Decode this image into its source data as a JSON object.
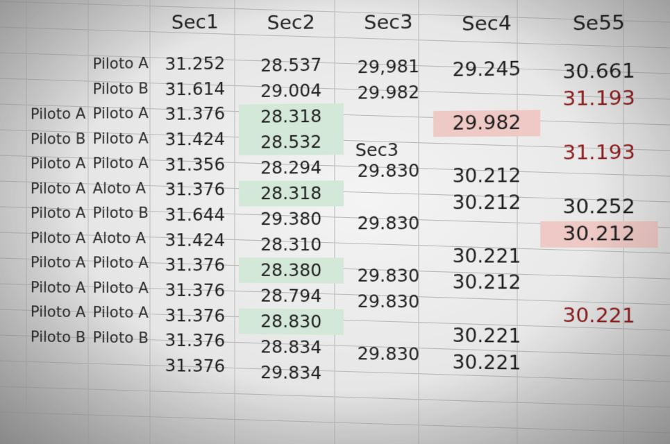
{
  "sheet": {
    "headers": [
      "Sec1",
      "Sec2",
      "Sec3",
      "Sec4",
      "Se55"
    ],
    "stray_label": "Sec3",
    "rows": [
      {
        "a": "",
        "b": "Piloto A",
        "sec1": "31.252",
        "sec2": "28.537",
        "sec3": "29,981",
        "sec4": "29.245",
        "sec5": "30.661"
      },
      {
        "a": "",
        "b": "Piloto B",
        "sec1": "31.614",
        "sec2": "29.004",
        "sec3": "29.982",
        "sec4": "",
        "sec5": "31.193"
      },
      {
        "a": "Piloto A",
        "b": "Piloto A",
        "sec1": "31.376",
        "sec2": "28.318",
        "sec3": "",
        "sec4": "29.982",
        "sec5": ""
      },
      {
        "a": "Piloto B",
        "b": "Piloto A",
        "sec1": "31.424",
        "sec2": "28.532",
        "sec3": "",
        "sec4": "",
        "sec5": "31.193"
      },
      {
        "a": "Piloto A",
        "b": "Piloto A",
        "sec1": "31.356",
        "sec2": "28.294",
        "sec3": "29.830",
        "sec4": "30.212",
        "sec5": ""
      },
      {
        "a": "Piloto A",
        "b": "Aloto A",
        "sec1": "31.376",
        "sec2": "28.318",
        "sec3": "",
        "sec4": "30.212",
        "sec5": "30.252"
      },
      {
        "a": "Piloto A",
        "b": "Piloto B",
        "sec1": "31.644",
        "sec2": "29.380",
        "sec3": "29.830",
        "sec4": "",
        "sec5": "30.212"
      },
      {
        "a": "Piloto A",
        "b": "Aloto A",
        "sec1": "31.424",
        "sec2": "28.310",
        "sec3": "",
        "sec4": "30.221",
        "sec5": ""
      },
      {
        "a": "Piloto A",
        "b": "Piloto A",
        "sec1": "31.376",
        "sec2": "28.380",
        "sec3": "29.830",
        "sec4": "30.212",
        "sec5": ""
      },
      {
        "a": "Piloto A",
        "b": "Piloto A",
        "sec1": "31.376",
        "sec2": "28.794",
        "sec3": "29.830",
        "sec4": "",
        "sec5": "30.221"
      },
      {
        "a": "Piloto A",
        "b": "Piloto A",
        "sec1": "31.376",
        "sec2": "28.830",
        "sec3": "",
        "sec4": "30.221",
        "sec5": ""
      },
      {
        "a": "Piloto B",
        "b": "Piloto B",
        "sec1": "31.376",
        "sec2": "28.834",
        "sec3": "29.830",
        "sec4": "30.221",
        "sec5": ""
      },
      {
        "a": "",
        "b": "",
        "sec1": "31.376",
        "sec2": "29.834",
        "sec3": "",
        "sec4": "",
        "sec5": ""
      }
    ],
    "colors": {
      "highlight_green": "#d4e8da",
      "highlight_red": "#efc9c6",
      "text_red": "#8e1d1d"
    }
  }
}
